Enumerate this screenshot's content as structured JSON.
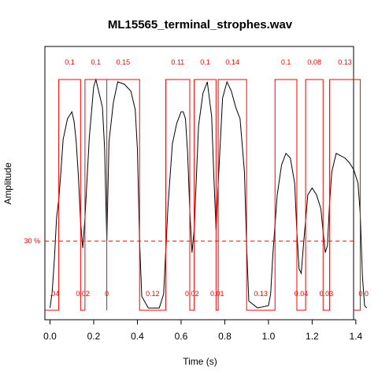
{
  "chart_data": {
    "type": "line",
    "title": "ML15565_terminal_strophes.wav",
    "xlabel": "Time (s)",
    "ylabel": "Amplitude",
    "xlim": [
      0,
      1.45
    ],
    "xticks": [
      0.0,
      0.2,
      0.4,
      0.6,
      0.8,
      1.0,
      1.2,
      1.4
    ],
    "xtick_labels": [
      "0.0",
      "0.2",
      "0.4",
      "0.6",
      "0.8",
      "1.0",
      "1.2",
      "1.4"
    ],
    "threshold": {
      "label": "30 %",
      "fraction": 0.3,
      "color": "#ff0000",
      "style": "dashed"
    },
    "colors": {
      "envelope": "#000000",
      "segments": "#ff0000"
    },
    "segments": [
      {
        "start": 0.04,
        "end": 0.14
      },
      {
        "start": 0.16,
        "end": 0.26
      },
      {
        "start": 0.26,
        "end": 0.41
      },
      {
        "start": 0.53,
        "end": 0.64
      },
      {
        "start": 0.66,
        "end": 0.76
      },
      {
        "start": 0.77,
        "end": 0.9
      },
      {
        "start": 1.03,
        "end": 1.13
      },
      {
        "start": 1.17,
        "end": 1.25
      },
      {
        "start": 1.28,
        "end": 1.42
      }
    ],
    "segment_labels": [
      "0.1",
      "0.1",
      "0.15",
      "0.11",
      "0.1",
      "0.14",
      "0.1",
      "0.08",
      "0.13"
    ],
    "gaps": [
      {
        "label": ".04",
        "center": 0.02
      },
      {
        "label": "0.02",
        "center": 0.15
      },
      {
        "label": "0",
        "center": 0.26
      },
      {
        "label": "0.12",
        "center": 0.47
      },
      {
        "label": "0.02",
        "center": 0.65
      },
      {
        "label": "0.01",
        "center": 0.765
      },
      {
        "label": "0.13",
        "center": 0.965
      },
      {
        "label": "0.04",
        "center": 1.15
      },
      {
        "label": "0.03",
        "center": 1.265
      },
      {
        "label": "0.0",
        "center": 1.435
      }
    ],
    "envelope": {
      "x": [
        0.0,
        0.01,
        0.02,
        0.03,
        0.04,
        0.05,
        0.06,
        0.08,
        0.1,
        0.11,
        0.12,
        0.13,
        0.14,
        0.15,
        0.16,
        0.18,
        0.2,
        0.21,
        0.22,
        0.24,
        0.25,
        0.26,
        0.27,
        0.29,
        0.31,
        0.34,
        0.37,
        0.39,
        0.4,
        0.41,
        0.42,
        0.45,
        0.5,
        0.52,
        0.54,
        0.56,
        0.58,
        0.6,
        0.61,
        0.62,
        0.63,
        0.64,
        0.65,
        0.66,
        0.68,
        0.7,
        0.72,
        0.74,
        0.75,
        0.76,
        0.77,
        0.79,
        0.81,
        0.83,
        0.85,
        0.87,
        0.89,
        0.9,
        0.91,
        0.95,
        1.0,
        1.01,
        1.02,
        1.04,
        1.06,
        1.08,
        1.1,
        1.12,
        1.13,
        1.14,
        1.15,
        1.16,
        1.18,
        1.2,
        1.22,
        1.24,
        1.25,
        1.26,
        1.27,
        1.28,
        1.29,
        1.31,
        1.33,
        1.35,
        1.37,
        1.39,
        1.41,
        1.42,
        1.43,
        1.44,
        1.45
      ],
      "y": [
        0.01,
        0.08,
        0.22,
        0.4,
        0.48,
        0.6,
        0.74,
        0.83,
        0.86,
        0.82,
        0.73,
        0.58,
        0.38,
        0.27,
        0.4,
        0.75,
        0.97,
        1.0,
        0.96,
        0.88,
        0.7,
        0.3,
        0.73,
        0.9,
        0.99,
        0.98,
        0.95,
        0.87,
        0.7,
        0.3,
        0.06,
        0.01,
        0.01,
        0.07,
        0.45,
        0.72,
        0.81,
        0.86,
        0.86,
        0.83,
        0.68,
        0.43,
        0.25,
        0.35,
        0.8,
        0.94,
        0.99,
        0.84,
        0.58,
        0.35,
        0.55,
        0.92,
        0.99,
        0.95,
        0.88,
        0.83,
        0.6,
        0.28,
        0.04,
        0.01,
        0.02,
        0.07,
        0.24,
        0.5,
        0.63,
        0.68,
        0.66,
        0.55,
        0.34,
        0.18,
        0.16,
        0.28,
        0.5,
        0.53,
        0.5,
        0.44,
        0.34,
        0.25,
        0.28,
        0.47,
        0.6,
        0.68,
        0.67,
        0.66,
        0.64,
        0.61,
        0.55,
        0.42,
        0.15,
        0.02,
        0.01
      ]
    }
  }
}
